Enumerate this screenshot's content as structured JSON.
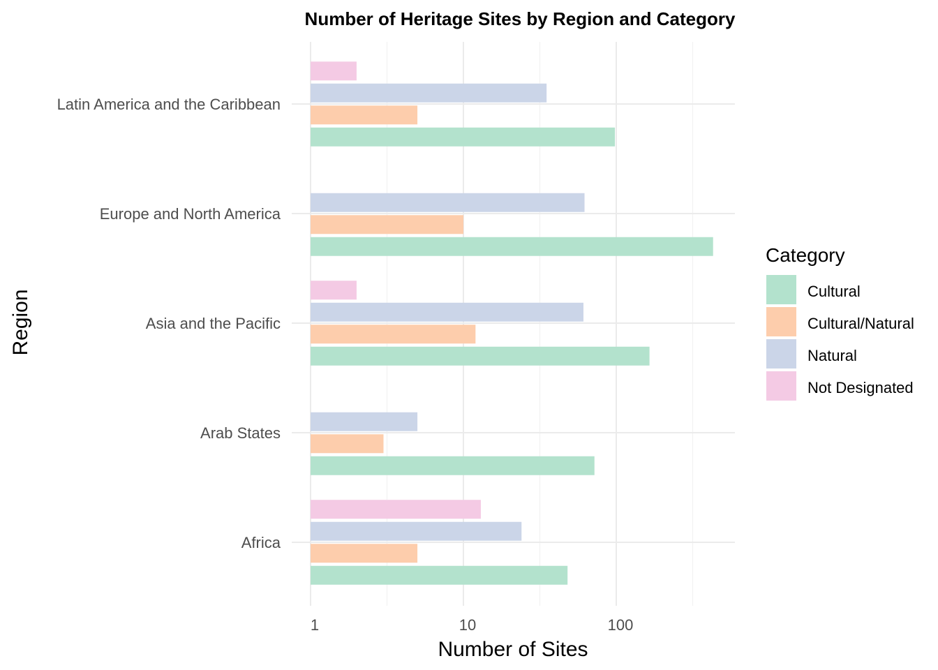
{
  "chart_data": {
    "type": "bar",
    "orientation": "horizontal",
    "title": "Number of Heritage Sites by Region and Category",
    "xlabel": "Number of Sites",
    "ylabel": "Region",
    "x_scale": "log10",
    "xlim": [
      1,
      500
    ],
    "x_ticks": [
      1,
      10,
      100
    ],
    "x_tick_labels": [
      "1",
      "10",
      "100"
    ],
    "grid": true,
    "legend": {
      "title": "Category",
      "position": "right"
    },
    "categories": [
      "Africa",
      "Arab States",
      "Asia and the Pacific",
      "Europe and North America",
      "Latin America and the Caribbean"
    ],
    "series": [
      {
        "name": "Cultural",
        "color": "#b3e2cd",
        "values": [
          48,
          72,
          165,
          430,
          98
        ]
      },
      {
        "name": "Cultural/Natural",
        "color": "#fdcdac",
        "values": [
          5,
          3,
          12,
          10,
          5
        ]
      },
      {
        "name": "Natural",
        "color": "#cbd5e8",
        "values": [
          24,
          5,
          61,
          62,
          35
        ]
      },
      {
        "name": "Not Designated",
        "color": "#f4cae4",
        "values": [
          13,
          null,
          2,
          null,
          2
        ]
      }
    ]
  }
}
